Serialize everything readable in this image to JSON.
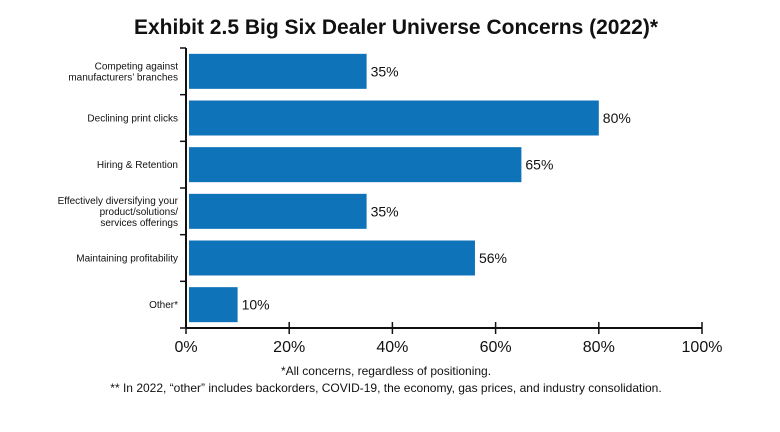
{
  "chart_data": {
    "type": "bar",
    "orientation": "horizontal",
    "title": "Exhibit 2.5 Big Six Dealer Universe Concerns (2022)*",
    "categories": [
      [
        "Competing against",
        "manufacturers’ branches"
      ],
      [
        "Declining print clicks"
      ],
      [
        "Hiring & Retention"
      ],
      [
        "Effectively diversifying your",
        "product/solutions/",
        "services offerings"
      ],
      [
        "Maintaining profitability"
      ],
      [
        "Other*"
      ]
    ],
    "values": [
      35,
      80,
      65,
      35,
      56,
      10
    ],
    "value_labels": [
      "35%",
      "80%",
      "65%",
      "35%",
      "56%",
      "10%"
    ],
    "xlim": [
      0,
      100
    ],
    "xticks": [
      0,
      20,
      40,
      60,
      80,
      100
    ],
    "xtick_labels": [
      "0%",
      "20%",
      "40%",
      "60%",
      "80%",
      "100%"
    ],
    "xlabel": "",
    "ylabel": "",
    "grid": false,
    "bar_color": "#0f73b9",
    "footnotes": [
      "*All concerns, regardless of positioning.",
      "** In 2022, “other” includes backorders, COVID-19, the economy, gas prices, and industry consolidation."
    ]
  }
}
